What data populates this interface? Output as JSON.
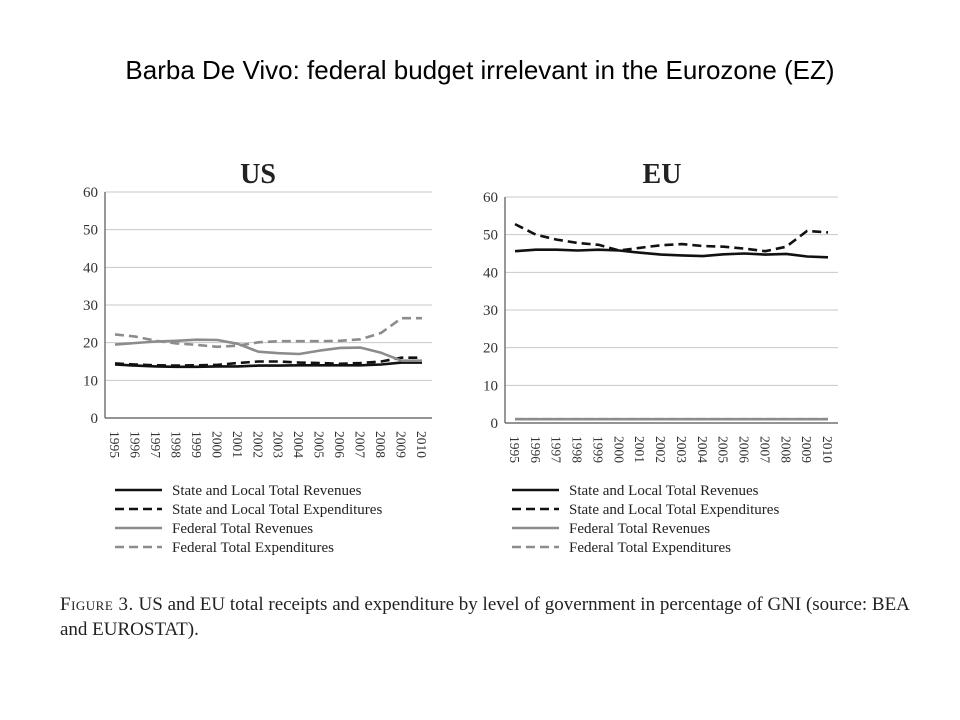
{
  "slide": {
    "title": "Barba De Vivo: federal budget irrelevant in the Eurozone (EZ)"
  },
  "figure": {
    "caption_label": "Figure 3.",
    "caption_text": "US and EU total receipts and expenditure by level of government in percentage of GNI (source: BEA and EUROSTAT)."
  },
  "chart_data": [
    {
      "type": "line",
      "title": "US",
      "xlabel": "",
      "ylabel": "",
      "ylim": [
        0,
        60
      ],
      "yticks": [
        0,
        10,
        20,
        30,
        40,
        50,
        60
      ],
      "grid": true,
      "legend_position": "bottom",
      "x": [
        "1995",
        "1996",
        "1997",
        "1998",
        "1999",
        "2000",
        "2001",
        "2002",
        "2003",
        "2004",
        "2005",
        "2006",
        "2007",
        "2008",
        "2009",
        "2010"
      ],
      "series": [
        {
          "name": "State and Local Total Revenues",
          "style": "solid",
          "color": "#111111",
          "values": [
            14.2,
            13.9,
            13.7,
            13.6,
            13.6,
            13.7,
            13.7,
            13.9,
            13.9,
            14.0,
            14.0,
            14.0,
            14.0,
            14.2,
            14.7,
            14.7
          ]
        },
        {
          "name": "State and Local Total Expenditures",
          "style": "dashed",
          "color": "#111111",
          "values": [
            14.5,
            14.2,
            14.0,
            13.9,
            14.0,
            14.1,
            14.6,
            15.0,
            15.0,
            14.7,
            14.6,
            14.4,
            14.6,
            15.0,
            16.0,
            16.0
          ]
        },
        {
          "name": "Federal Total Revenues",
          "style": "solid",
          "color": "#8c8c8c",
          "values": [
            19.5,
            19.9,
            20.3,
            20.5,
            20.8,
            20.7,
            19.7,
            17.6,
            17.2,
            17.0,
            17.9,
            18.6,
            18.7,
            17.3,
            15.2,
            15.2
          ]
        },
        {
          "name": "Federal Total Expenditures",
          "style": "dashed",
          "color": "#8c8c8c",
          "values": [
            22.2,
            21.6,
            20.5,
            19.8,
            19.4,
            18.9,
            19.2,
            20.1,
            20.4,
            20.4,
            20.4,
            20.5,
            20.9,
            22.6,
            26.5,
            26.5
          ]
        }
      ]
    },
    {
      "type": "line",
      "title": "EU",
      "xlabel": "",
      "ylabel": "",
      "ylim": [
        0,
        60
      ],
      "yticks": [
        0,
        10,
        20,
        30,
        40,
        50,
        60
      ],
      "grid": true,
      "legend_position": "bottom",
      "x": [
        "1995",
        "1996",
        "1997",
        "1998",
        "1999",
        "2000",
        "2001",
        "2002",
        "2003",
        "2004",
        "2005",
        "2006",
        "2007",
        "2008",
        "2009",
        "2010"
      ],
      "series": [
        {
          "name": "State and Local Total Revenues",
          "style": "solid",
          "color": "#111111",
          "values": [
            45.6,
            46.0,
            46.0,
            45.8,
            46.0,
            45.8,
            45.2,
            44.7,
            44.5,
            44.3,
            44.8,
            45.0,
            44.7,
            44.9,
            44.2,
            44.0
          ]
        },
        {
          "name": "State and Local Total Expenditures",
          "style": "dashed",
          "color": "#111111",
          "values": [
            52.8,
            50.0,
            48.7,
            47.8,
            47.3,
            45.8,
            46.5,
            47.2,
            47.5,
            47.0,
            46.8,
            46.3,
            45.6,
            46.8,
            51.0,
            50.6
          ]
        },
        {
          "name": "Federal Total Revenues",
          "style": "solid",
          "color": "#8c8c8c",
          "values": [
            1.0,
            1.0,
            1.0,
            1.0,
            1.0,
            1.0,
            1.0,
            1.0,
            1.0,
            1.0,
            1.0,
            1.0,
            1.0,
            1.0,
            1.0,
            1.0
          ]
        },
        {
          "name": "Federal Total Expenditures",
          "style": "dashed",
          "color": "#8c8c8c",
          "values": [
            1.0,
            1.0,
            1.0,
            1.0,
            1.0,
            1.0,
            1.0,
            1.0,
            1.0,
            1.0,
            1.0,
            1.0,
            1.0,
            1.0,
            1.0,
            1.0
          ]
        }
      ]
    }
  ]
}
